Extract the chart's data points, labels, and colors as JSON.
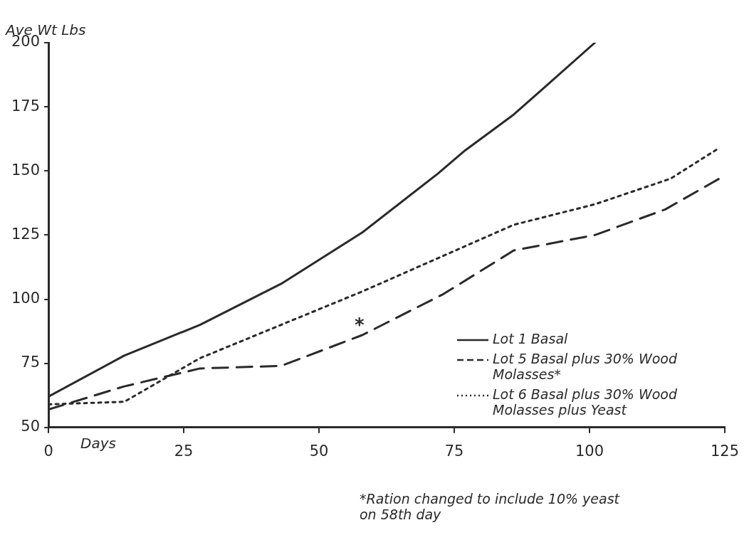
{
  "chart_data": {
    "type": "line",
    "xlabel": "Days",
    "ylabel": "Ave Wt Lbs",
    "xlim": [
      0,
      125
    ],
    "xticks": [
      0,
      25,
      50,
      75,
      100,
      125
    ],
    "ylim": [
      50,
      200
    ],
    "yticks": [
      50,
      75,
      100,
      125,
      150,
      175,
      200
    ],
    "grid": false,
    "legend": "bottom right",
    "marker": "none",
    "series": [
      {
        "name": "Lot 1 Basal",
        "color": "#2a2a2a",
        "line_style": "solid",
        "x": [
          0,
          14,
          28,
          43,
          58,
          72,
          77,
          86,
          101
        ],
        "values": [
          62,
          78,
          90,
          106,
          126,
          149,
          158,
          172,
          200
        ]
      },
      {
        "name": "Lot 5 Basal plus 30% Wood Molasses*",
        "color": "#2a2a2a",
        "line_style": "dashed",
        "x": [
          0,
          14,
          28,
          43,
          58,
          73,
          86,
          101,
          114,
          124
        ],
        "values": [
          57,
          66,
          73,
          74,
          86,
          102,
          119,
          125,
          135,
          147
        ]
      },
      {
        "name": "Lot 6 Basal plus 30% Wood Molasses plus Yeast",
        "color": "#2a2a2a",
        "line_style": "dotted",
        "x": [
          0,
          14,
          28,
          58,
          86,
          101,
          115,
          124
        ],
        "values": [
          59,
          60,
          77,
          103,
          129,
          137,
          147,
          159
        ]
      }
    ],
    "annotations": [
      {
        "text": "*",
        "x": 58,
        "y": 86
      },
      "*Ration changed to include 10% yeast on 58th day"
    ]
  }
}
